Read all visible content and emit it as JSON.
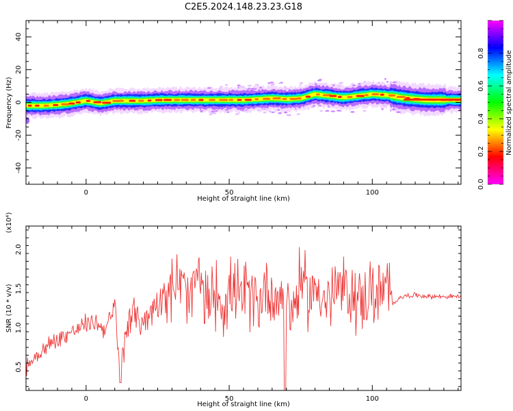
{
  "title": "C2E5.2024.148.23.23.G18",
  "chart_data": [
    {
      "type": "heatmap",
      "xlabel": "Height of straight line (km)",
      "ylabel": "Frequency (Hz)",
      "xlim": [
        -21,
        131
      ],
      "ylim": [
        -50,
        50
      ],
      "xticks": [
        0,
        50,
        100
      ],
      "yticks": [
        -40,
        -20,
        0,
        20,
        40
      ],
      "colorbar": {
        "label": "Normalized spectral amplitude",
        "range": [
          0.0,
          1.0
        ],
        "ticks": [
          "0.0",
          "0.2",
          "0.4",
          "0.6",
          "0.8"
        ],
        "colormap": [
          "#ff00ff",
          "#ff0000",
          "#ffff00",
          "#00ff00",
          "#00ffff",
          "#0000ff",
          "#ff00ff"
        ]
      },
      "ridge_frequency": {
        "x": [
          -21,
          -15,
          -10,
          -5,
          0,
          5,
          10,
          15,
          20,
          25,
          30,
          35,
          40,
          45,
          50,
          55,
          60,
          65,
          70,
          75,
          80,
          85,
          90,
          95,
          100,
          105,
          110,
          115,
          120,
          125,
          131
        ],
        "y": [
          -2.0,
          -2.0,
          -1.5,
          -0.5,
          1.0,
          -0.5,
          1.0,
          1.0,
          1.0,
          1.5,
          1.5,
          1.5,
          1.5,
          1.5,
          1.5,
          1.5,
          2.0,
          2.5,
          2.0,
          2.5,
          5.0,
          4.0,
          3.0,
          4.0,
          5.0,
          4.5,
          3.0,
          2.0,
          1.5,
          1.5,
          1.5
        ]
      }
    },
    {
      "type": "line",
      "xlabel": "Height of straight line (km)",
      "ylabel": "SNR (10 * v/v)",
      "yscale_label": "(x10⁴)",
      "xlim": [
        -21,
        131
      ],
      "ylim": [
        0.2,
        2.3
      ],
      "xticks": [
        0,
        50,
        100
      ],
      "yticks": [
        "0.5",
        "1.0",
        "1.5",
        "2.0"
      ],
      "color": "#ee3333",
      "series": [
        {
          "x": [
            -21,
            -18,
            -15,
            -12,
            -9,
            -6,
            -3,
            0,
            3,
            6,
            8,
            10,
            12,
            15,
            18,
            21,
            24,
            27,
            30,
            33,
            36,
            39,
            42,
            45,
            48,
            51,
            54,
            57,
            60,
            63,
            66,
            69,
            72,
            75,
            78,
            81,
            84,
            87,
            90,
            93,
            96,
            99,
            102,
            105,
            107,
            110,
            115,
            120,
            125,
            131
          ],
          "y": [
            0.5,
            0.62,
            0.72,
            0.8,
            0.88,
            0.93,
            0.98,
            1.05,
            1.08,
            1.0,
            1.05,
            1.25,
            0.4,
            1.2,
            1.1,
            1.1,
            1.3,
            1.45,
            1.5,
            1.6,
            1.3,
            1.7,
            1.25,
            1.5,
            1.3,
            1.5,
            1.35,
            1.45,
            1.3,
            1.55,
            1.35,
            1.5,
            1.2,
            1.6,
            1.4,
            1.55,
            1.3,
            1.45,
            1.5,
            1.4,
            1.35,
            1.45,
            1.4,
            1.5,
            1.3,
            1.4,
            1.42,
            1.4,
            1.4,
            1.4
          ]
        }
      ]
    }
  ]
}
